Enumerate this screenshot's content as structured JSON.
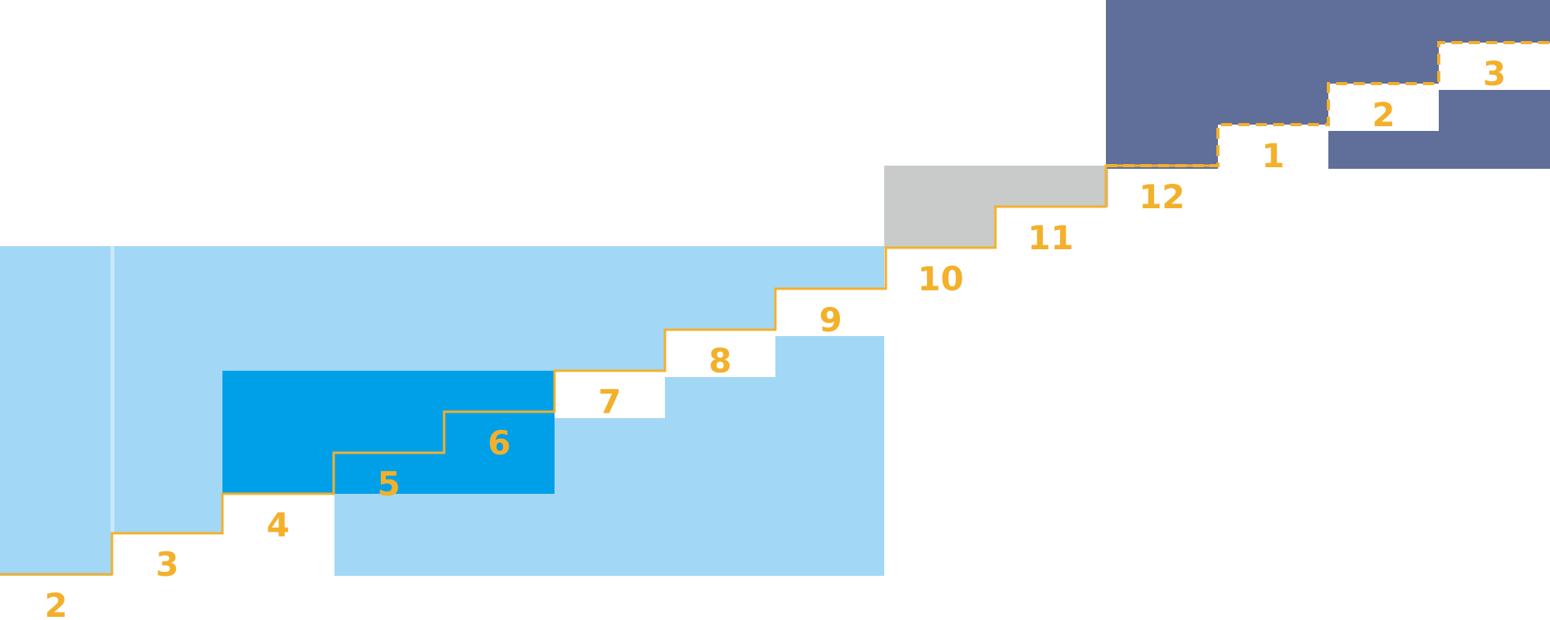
{
  "colors": {
    "light_blue": "#a2d8f5",
    "divider": "#c9e8fa",
    "bright_blue": "#00a0e8",
    "gray": "#c9cbca",
    "navy": "#5f6f99",
    "stair_line": "#f3b02b",
    "label": "#f3b02b",
    "background": "#ffffff"
  },
  "regions": [
    {
      "name": "light-blue-block",
      "color": "light_blue"
    },
    {
      "name": "bright-blue-block",
      "color": "bright_blue"
    },
    {
      "name": "gray-block",
      "color": "gray"
    },
    {
      "name": "navy-block",
      "color": "navy"
    }
  ],
  "steps": [
    {
      "label": "2"
    },
    {
      "label": "3"
    },
    {
      "label": "4"
    },
    {
      "label": "5"
    },
    {
      "label": "6"
    },
    {
      "label": "7"
    },
    {
      "label": "8"
    },
    {
      "label": "9"
    },
    {
      "label": "10"
    },
    {
      "label": "11"
    },
    {
      "label": "12"
    },
    {
      "label": "1"
    },
    {
      "label": "2"
    },
    {
      "label": "3"
    }
  ]
}
